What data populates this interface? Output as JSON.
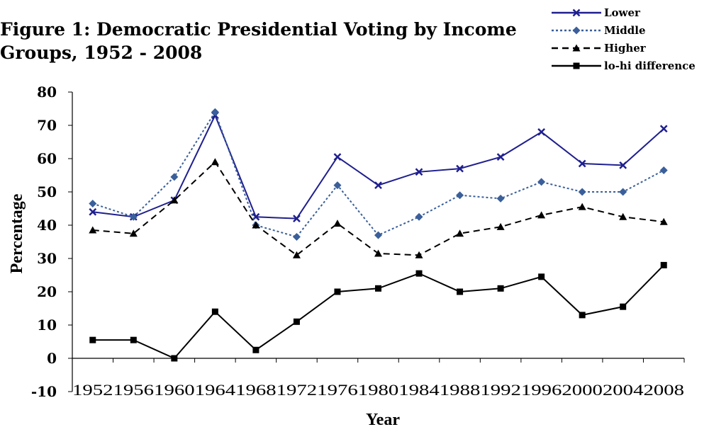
{
  "chart_data": {
    "type": "line",
    "title_lines": [
      "Figure 1: Democratic Presidential Voting by Income",
      "Groups, 1952 - 2008"
    ],
    "xlabel": "Year",
    "ylabel": "Percentage",
    "ylim": [
      -10,
      80
    ],
    "yticks": [
      -10,
      0,
      10,
      20,
      30,
      40,
      50,
      60,
      70,
      80
    ],
    "categories": [
      "1952",
      "1956",
      "1960",
      "1964",
      "1968",
      "1972",
      "1976",
      "1980",
      "1984",
      "1988",
      "1992",
      "1996",
      "2000",
      "2004",
      "2008"
    ],
    "grid": false,
    "legend_position": "top-right",
    "series": [
      {
        "name": "Lower",
        "color": "#1f1f8f",
        "dash": "solid",
        "marker": "x",
        "values": [
          44,
          42.5,
          47.5,
          73,
          42.5,
          42,
          60.5,
          52,
          56,
          57,
          60.5,
          68,
          58.5,
          58,
          69
        ]
      },
      {
        "name": "Middle",
        "color": "#3a5f9a",
        "dash": "dotted",
        "marker": "diamond",
        "values": [
          46.5,
          42.5,
          54.5,
          74,
          40,
          36.5,
          52,
          37,
          42.5,
          49,
          48,
          53,
          50,
          50,
          56.5
        ]
      },
      {
        "name": "Higher",
        "color": "#000000",
        "dash": "dashed",
        "marker": "triangle",
        "values": [
          38.5,
          37.5,
          47.5,
          59,
          40,
          31,
          40.5,
          31.5,
          31,
          37.5,
          39.5,
          43,
          45.5,
          42.5,
          41
        ]
      },
      {
        "name": "lo-hi difference",
        "color": "#000000",
        "dash": "solid",
        "marker": "square",
        "values": [
          5.5,
          5.5,
          0,
          14,
          2.5,
          11,
          20,
          21,
          25.5,
          20,
          21,
          24.5,
          13,
          15.5,
          28
        ]
      }
    ]
  }
}
